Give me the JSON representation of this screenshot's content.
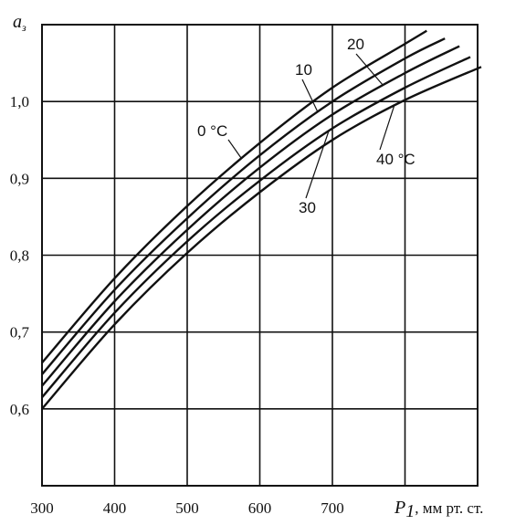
{
  "chart_data": {
    "type": "line",
    "ylabel": "a",
    "ylabel_subscript": "з",
    "xlabel": "P",
    "xlabel_subscript": "1",
    "xlabel_unit": ", мм рт. ст.",
    "xlim": [
      300,
      900
    ],
    "ylim": [
      0.5,
      1.1
    ],
    "x_tick_labels": [
      {
        "value": 300,
        "label": "300"
      },
      {
        "value": 400,
        "label": "400"
      },
      {
        "value": 500,
        "label": "500"
      },
      {
        "value": 600,
        "label": "600"
      },
      {
        "value": 700,
        "label": "700"
      }
    ],
    "x_grid_values": [
      400,
      500,
      600,
      700,
      800
    ],
    "y_tick_labels": [
      {
        "value": 0.6,
        "label": "0,6"
      },
      {
        "value": 0.7,
        "label": "0,7"
      },
      {
        "value": 0.8,
        "label": "0,8"
      },
      {
        "value": 0.9,
        "label": "0,9"
      },
      {
        "value": 1.0,
        "label": "1,0"
      }
    ],
    "y_grid_values": [
      0.6,
      0.7,
      0.8,
      0.9,
      1.0
    ],
    "grid": true,
    "series": [
      {
        "name": "0 °C",
        "x": [
          300,
          400,
          500,
          600,
          700,
          800,
          830
        ],
        "y": [
          0.66,
          0.77,
          0.864,
          0.946,
          1.018,
          1.075,
          1.092
        ]
      },
      {
        "name": "10",
        "x": [
          300,
          400,
          500,
          600,
          700,
          800,
          855
        ],
        "y": [
          0.645,
          0.755,
          0.848,
          0.93,
          1.0,
          1.056,
          1.082
        ]
      },
      {
        "name": "20",
        "x": [
          300,
          400,
          500,
          600,
          700,
          800,
          875
        ],
        "y": [
          0.63,
          0.74,
          0.833,
          0.914,
          0.983,
          1.037,
          1.072
        ]
      },
      {
        "name": "30",
        "x": [
          300,
          400,
          500,
          600,
          700,
          800,
          890
        ],
        "y": [
          0.615,
          0.725,
          0.818,
          0.897,
          0.965,
          1.018,
          1.058
        ]
      },
      {
        "name": "40 °C",
        "x": [
          300,
          400,
          500,
          600,
          700,
          800,
          905
        ],
        "y": [
          0.6,
          0.71,
          0.803,
          0.882,
          0.95,
          1.002,
          1.045
        ]
      }
    ],
    "annotations": [
      {
        "label": "0 °C",
        "series": "0 °C"
      },
      {
        "label": "10",
        "series": "10"
      },
      {
        "label": "20",
        "series": "20"
      },
      {
        "label": "30",
        "series": "30"
      },
      {
        "label": "40 °C",
        "series": "40 °C"
      }
    ]
  }
}
